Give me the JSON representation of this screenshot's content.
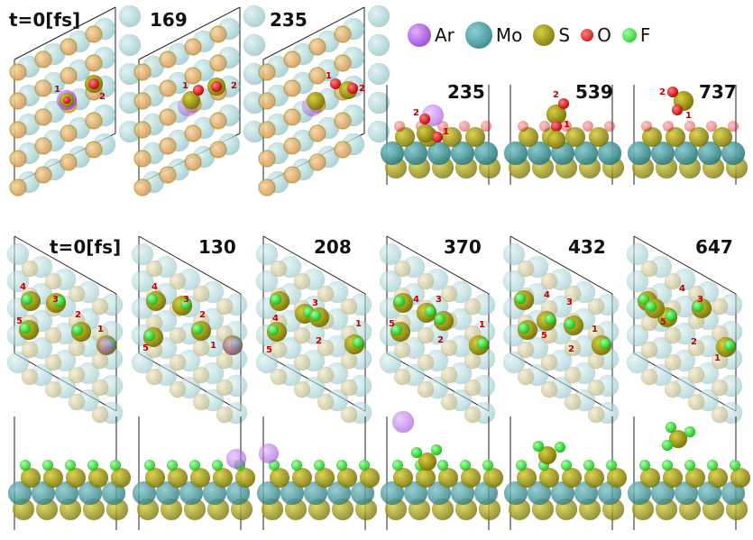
{
  "legend": {
    "items": [
      {
        "label": "Ar",
        "color": "#9a2de0"
      },
      {
        "label": "Mo",
        "color": "#3a9aa0"
      },
      {
        "label": "S",
        "color": "#a09a10"
      },
      {
        "label": "O",
        "color": "#e01010"
      },
      {
        "label": "F",
        "color": "#20e020"
      }
    ]
  },
  "top_row": {
    "topview_times": [
      "t=0[fs]",
      "169",
      "235"
    ],
    "sideview_times": [
      "235",
      "539",
      "737"
    ],
    "indices": [
      "1",
      "2"
    ]
  },
  "bottom_row": {
    "times": [
      "t=0[fs]",
      "130",
      "208",
      "370",
      "432",
      "647"
    ],
    "indices": [
      "1",
      "2",
      "3",
      "4",
      "5"
    ]
  },
  "colors": {
    "mo": "#8ec8cc",
    "mo_dark": "#3a9aa0",
    "s": "#a09a10",
    "s_light": "#d8d0a0",
    "o": "#e01010",
    "f": "#20e020",
    "ar": "#b870e8"
  }
}
